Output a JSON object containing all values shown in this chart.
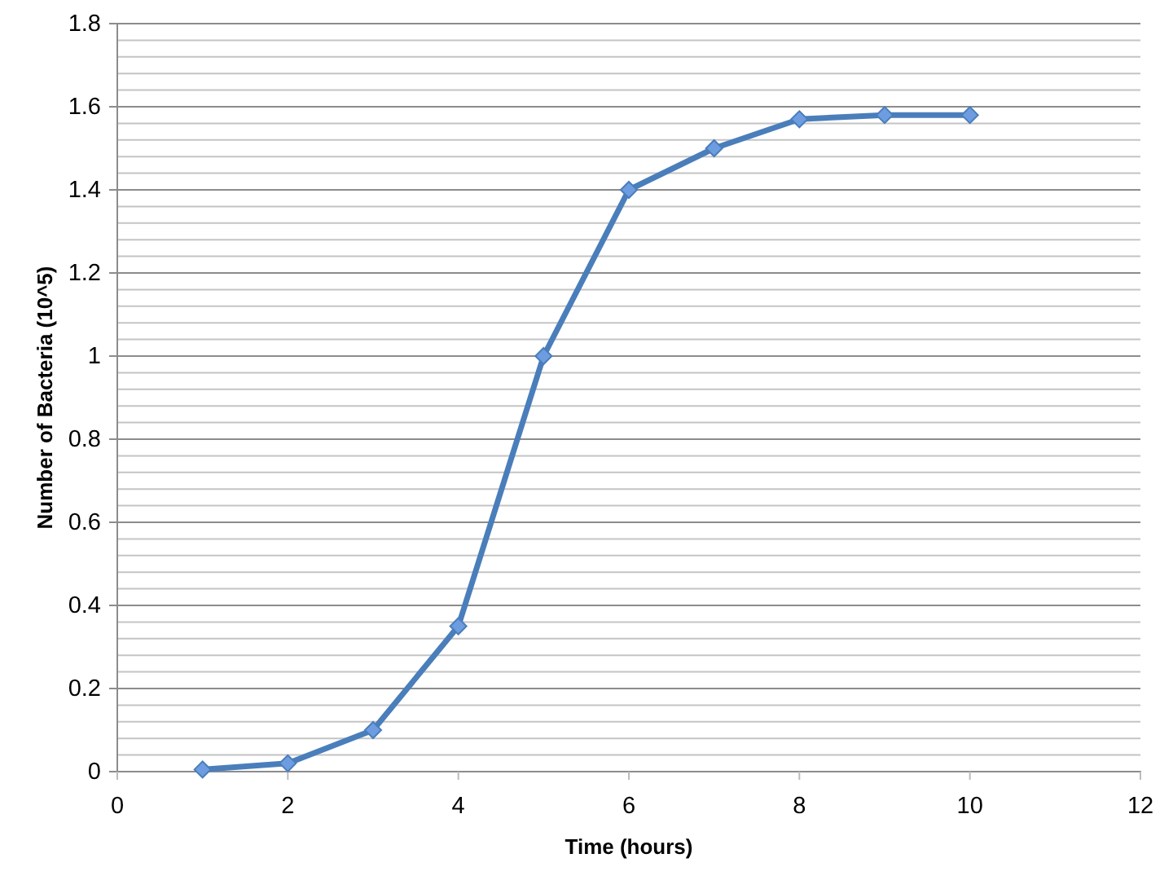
{
  "chart_data": {
    "type": "line",
    "xlabel": "Time (hours)",
    "ylabel": "Number of Bacteria (10^5)",
    "x": [
      1,
      2,
      3,
      4,
      5,
      6,
      7,
      8,
      9,
      10
    ],
    "series": [
      {
        "color": "#4a7ebb",
        "values": [
          0.005,
          0.02,
          0.1,
          0.35,
          1.0,
          1.4,
          1.5,
          1.57,
          1.58,
          1.58
        ]
      }
    ],
    "xlim": [
      0,
      12
    ],
    "xticks": [
      0,
      2,
      4,
      6,
      8,
      10,
      12
    ],
    "ylim": [
      0,
      1.8
    ],
    "yticks": [
      0,
      {
        "value": 0.04,
        "label": null
      },
      {
        "value": 0.08,
        "label": null
      },
      {
        "value": 0.12,
        "label": null
      },
      {
        "value": 0.16,
        "label": null
      },
      {
        "value": 0.2,
        "label": "0.2"
      },
      {
        "value": 0.24,
        "label": null
      },
      {
        "value": 0.28,
        "label": null
      },
      {
        "value": 0.32,
        "label": null
      },
      {
        "value": 0.36,
        "label": null
      },
      {
        "value": 0.4,
        "label": "0.4"
      },
      {
        "value": 0.44,
        "label": null
      },
      {
        "value": 0.48,
        "label": null
      },
      {
        "value": 0.52,
        "label": null
      },
      {
        "value": 0.56,
        "label": null
      },
      {
        "value": 0.6,
        "label": "0.6"
      },
      {
        "value": 0.64,
        "label": null
      },
      {
        "value": 0.68,
        "label": null
      },
      {
        "value": 0.72,
        "label": null
      },
      {
        "value": 0.76,
        "label": null
      },
      {
        "value": 0.8,
        "label": "0.8"
      },
      {
        "value": 0.84,
        "label": null
      },
      {
        "value": 0.88,
        "label": null
      },
      {
        "value": 0.92,
        "label": null
      },
      {
        "value": 0.96,
        "label": null
      },
      1,
      {
        "value": 1.04,
        "label": null
      },
      {
        "value": 1.08,
        "label": null
      },
      {
        "value": 1.12,
        "label": null
      },
      {
        "value": 1.16,
        "label": null
      },
      {
        "value": 1.2,
        "label": "1.2"
      },
      {
        "value": 1.24,
        "label": null
      },
      {
        "value": 1.28,
        "label": null
      },
      {
        "value": 1.32,
        "label": null
      },
      {
        "value": 1.36,
        "label": null
      },
      {
        "value": 1.4,
        "label": "1.4"
      },
      {
        "value": 1.44,
        "label": null
      },
      {
        "value": 1.48,
        "label": null
      },
      {
        "value": 1.52,
        "label": null
      },
      {
        "value": 1.56,
        "label": null
      },
      {
        "value": 1.6,
        "label": "1.6"
      },
      {
        "value": 1.64,
        "label": null
      },
      {
        "value": 1.68,
        "label": null
      },
      {
        "value": 1.72,
        "label": null
      },
      {
        "value": 1.76,
        "label": null
      },
      {
        "value": 1.8,
        "label": "1.8"
      }
    ],
    "grid": "y",
    "marker": "diamond",
    "line_style": "solid"
  }
}
